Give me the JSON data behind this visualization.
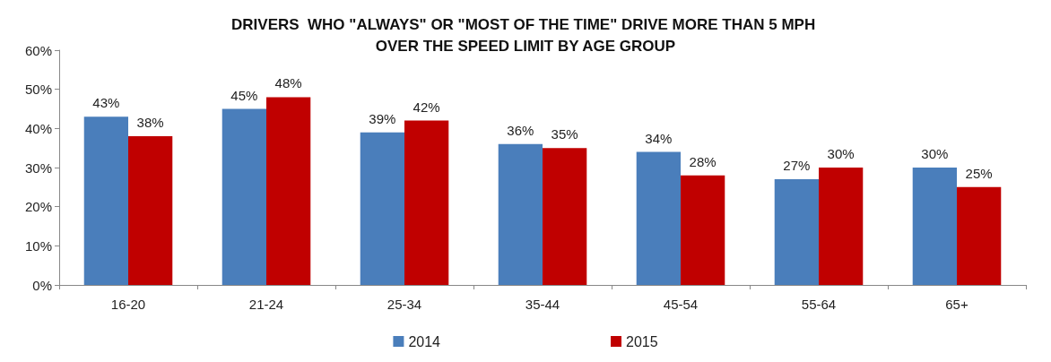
{
  "chart_data": {
    "type": "bar",
    "title": "DRIVERS  WHO \"ALWAYS\" OR \"MOST OF THE TIME\" DRIVE MORE THAN 5 MPH OVER THE SPEED LIMIT BY AGE GROUP",
    "categories": [
      "16-20",
      "21-24",
      "25-34",
      "35-44",
      "45-54",
      "55-64",
      "65+"
    ],
    "series": [
      {
        "name": "2014",
        "color": "#4a7ebb",
        "values": [
          43,
          45,
          39,
          36,
          34,
          27,
          30
        ],
        "value_labels": [
          "43%",
          "45%",
          "39%",
          "36%",
          "34%",
          "27%",
          "30%"
        ]
      },
      {
        "name": "2015",
        "color": "#c00000",
        "values": [
          38,
          48,
          42,
          35,
          28,
          30,
          25
        ],
        "value_labels": [
          "38%",
          "48%",
          "42%",
          "35%",
          "28%",
          "30%",
          "25%"
        ]
      }
    ],
    "ylim": [
      0,
      60
    ],
    "yticks": [
      {
        "value": 0,
        "label": "0%"
      },
      {
        "value": 10,
        "label": "10%"
      },
      {
        "value": 20,
        "label": "20%"
      },
      {
        "value": 30,
        "label": "30%"
      },
      {
        "value": 40,
        "label": "40%"
      },
      {
        "value": 50,
        "label": "50%"
      },
      {
        "value": 60,
        "label": "60%"
      }
    ],
    "grid": false,
    "legend": "bottom"
  }
}
